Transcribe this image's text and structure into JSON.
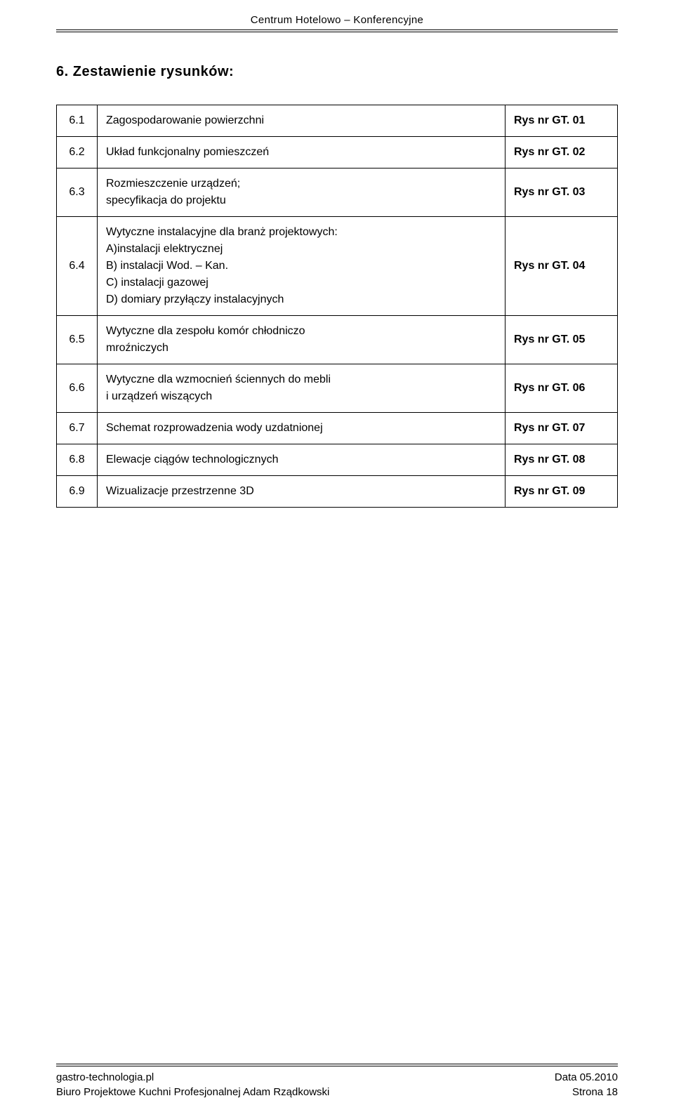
{
  "header": {
    "title": "Centrum Hotelowo – Konferencyjne"
  },
  "section": {
    "heading": "6. Zestawienie rysunków:"
  },
  "table": {
    "rows": [
      {
        "num": "6.1",
        "desc": "Zagospodarowanie powierzchni",
        "rys": "Rys nr GT. 01"
      },
      {
        "num": "6.2",
        "desc": "Układ funkcjonalny pomieszczeń",
        "rys": "Rys nr GT. 02"
      },
      {
        "num": "6.3",
        "desc": "Rozmieszczenie urządzeń;\nspecyfikacja do projektu",
        "rys": "Rys nr GT. 03"
      },
      {
        "num": "6.4",
        "desc": "Wytyczne instalacyjne dla branż projektowych:\nA)instalacji elektrycznej\nB) instalacji Wod. – Kan.\nC) instalacji gazowej\nD) domiary przyłączy instalacyjnych",
        "rys": "Rys nr GT. 04"
      },
      {
        "num": "6.5",
        "desc": "Wytyczne dla zespołu komór chłodniczo\nmroźniczych",
        "rys": "Rys nr GT. 05"
      },
      {
        "num": "6.6",
        "desc": "Wytyczne dla wzmocnień ściennych do mebli\ni urządzeń wiszących",
        "rys": "Rys nr GT. 06"
      },
      {
        "num": "6.7",
        "desc": "Schemat rozprowadzenia wody uzdatnionej",
        "rys": "Rys nr GT. 07"
      },
      {
        "num": "6.8",
        "desc": "Elewacje ciągów technologicznych",
        "rys": "Rys nr GT. 08"
      },
      {
        "num": "6.9",
        "desc": "Wizualizacje przestrzenne 3D",
        "rys": "Rys nr GT. 09"
      }
    ]
  },
  "footer": {
    "left_line1": "gastro-technologia.pl",
    "left_line2": "Biuro Projektowe Kuchni Profesjonalnej Adam Rządkowski",
    "right_line1": "Data 05.2010",
    "right_line2": "Strona 18"
  },
  "style": {
    "body_width": 960,
    "body_height": 1591,
    "text_color": "#000000",
    "background_color": "#ffffff",
    "font_family": "Trebuchet MS, Lucida Sans, Arial, sans-serif",
    "heading_fontsize": 20,
    "body_fontsize": 16,
    "header_fontsize": 15,
    "footer_fontsize": 15,
    "col_widths": {
      "num": 58,
      "rys": 160
    },
    "border_color": "#000000",
    "border_width": 1,
    "cell_padding_v": 10,
    "cell_padding_h": 12,
    "line_height": 1.5
  }
}
